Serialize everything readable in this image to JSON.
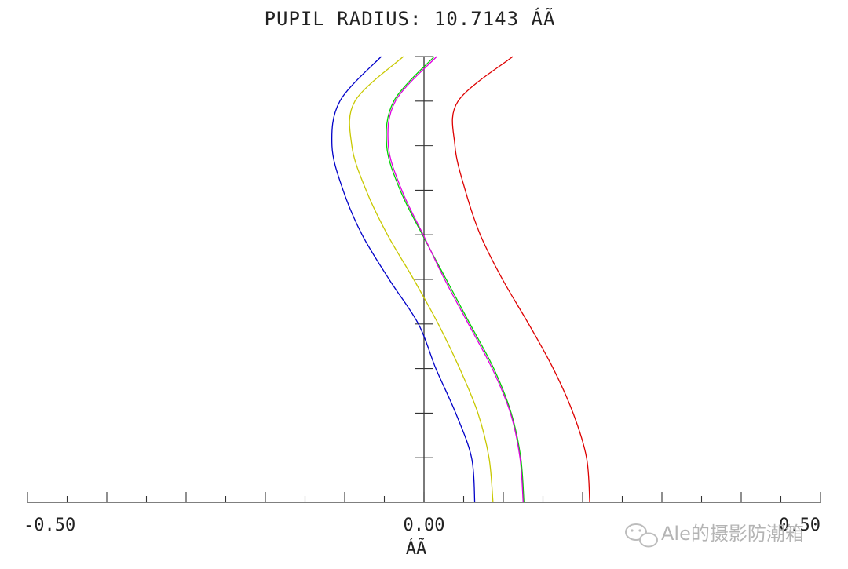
{
  "chart_data": {
    "type": "line",
    "title": "PUPIL RADIUS: 10.7143  ÁÃ",
    "xlabel": "ÁÃ",
    "ylabel": "",
    "xlim": [
      -0.5,
      0.5
    ],
    "ylim": [
      0,
      10.7143
    ],
    "x_tick_labels": [
      {
        "value": -0.5,
        "label": "-0.50"
      },
      {
        "value": 0.0,
        "label": "0.00"
      },
      {
        "value": 0.5,
        "label": "0.50"
      }
    ],
    "x_minor_tick_step": 0.05,
    "y_tick_step": 1.0714,
    "grid": false,
    "series": [
      {
        "color": "#0000c8",
        "values": [
          [
            0.0,
            0.064
          ],
          [
            1.0714,
            0.06
          ],
          [
            2.1429,
            0.04
          ],
          [
            3.2143,
            0.015
          ],
          [
            4.2857,
            -0.007
          ],
          [
            5.3571,
            -0.044
          ],
          [
            6.4286,
            -0.078
          ],
          [
            7.5,
            -0.102
          ],
          [
            8.5714,
            -0.116
          ],
          [
            9.6429,
            -0.106
          ],
          [
            10.7143,
            -0.054
          ]
        ]
      },
      {
        "color": "#c8c800",
        "values": [
          [
            0.0,
            0.087
          ],
          [
            1.0714,
            0.082
          ],
          [
            2.1429,
            0.068
          ],
          [
            3.2143,
            0.045
          ],
          [
            4.2857,
            0.018
          ],
          [
            5.3571,
            -0.013
          ],
          [
            6.4286,
            -0.046
          ],
          [
            7.5,
            -0.073
          ],
          [
            8.5714,
            -0.091
          ],
          [
            9.6429,
            -0.087
          ],
          [
            10.7143,
            -0.026
          ]
        ]
      },
      {
        "color": "#00d000",
        "values": [
          [
            0.0,
            0.126
          ],
          [
            1.0714,
            0.122
          ],
          [
            2.1429,
            0.11
          ],
          [
            3.2143,
            0.088
          ],
          [
            4.2857,
            0.058
          ],
          [
            5.3571,
            0.028
          ],
          [
            6.4286,
            -0.002
          ],
          [
            7.5,
            -0.03
          ],
          [
            8.5714,
            -0.047
          ],
          [
            9.6429,
            -0.038
          ],
          [
            10.7143,
            0.013
          ]
        ]
      },
      {
        "color": "#e000e0",
        "values": [
          [
            0.0,
            0.125
          ],
          [
            1.0714,
            0.121
          ],
          [
            2.1429,
            0.109
          ],
          [
            3.2143,
            0.086
          ],
          [
            4.2857,
            0.056
          ],
          [
            5.3571,
            0.026
          ],
          [
            6.4286,
            -0.001
          ],
          [
            7.5,
            -0.028
          ],
          [
            8.5714,
            -0.045
          ],
          [
            9.6429,
            -0.036
          ],
          [
            10.7143,
            0.016
          ]
        ]
      },
      {
        "color": "#dd0000",
        "values": [
          [
            0.0,
            0.209
          ],
          [
            1.0714,
            0.205
          ],
          [
            2.1429,
            0.188
          ],
          [
            3.2143,
            0.163
          ],
          [
            4.2857,
            0.132
          ],
          [
            5.3571,
            0.099
          ],
          [
            6.4286,
            0.071
          ],
          [
            7.5,
            0.052
          ],
          [
            8.5714,
            0.039
          ],
          [
            9.6429,
            0.043
          ],
          [
            10.7143,
            0.112
          ]
        ]
      }
    ]
  },
  "watermark": {
    "text": "Ale的摄影防潮箱"
  }
}
